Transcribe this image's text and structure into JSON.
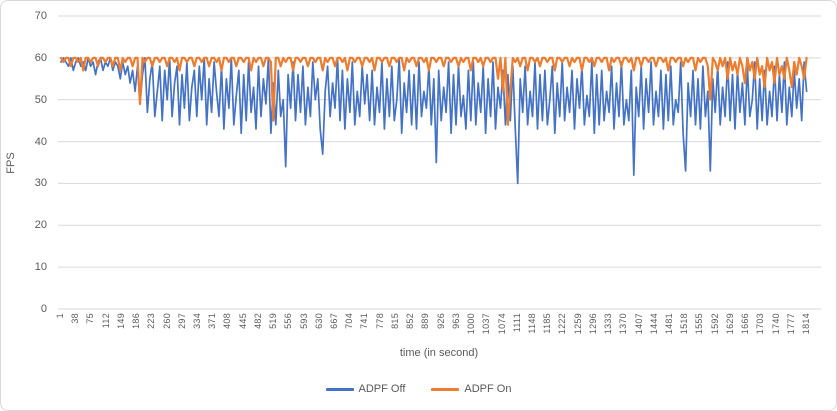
{
  "colors": {
    "adpf_off": "#4472C4",
    "adpf_on": "#ED7D31",
    "gridline": "#D9D9D9",
    "axis_text": "#595959",
    "figure_border": "#D9D9D9",
    "background": "#FFFFFF"
  },
  "chart_data": {
    "type": "line",
    "title": "",
    "xlabel": "time (in second)",
    "ylabel": "FPS",
    "ylim": [
      0,
      70
    ],
    "y_ticks": [
      0,
      10,
      20,
      30,
      40,
      50,
      60,
      70
    ],
    "x_range": [
      1,
      1814
    ],
    "x_tick_labels": [
      1,
      38,
      75,
      112,
      149,
      186,
      223,
      260,
      297,
      334,
      371,
      408,
      445,
      482,
      519,
      556,
      593,
      630,
      667,
      704,
      741,
      778,
      815,
      852,
      889,
      926,
      963,
      1000,
      1037,
      1074,
      1111,
      1148,
      1185,
      1222,
      1259,
      1296,
      1333,
      1370,
      1407,
      1444,
      1481,
      1518,
      1555,
      1592,
      1629,
      1666,
      1703,
      1740,
      1777,
      1814
    ],
    "grid": "horizontal",
    "legend_position": "bottom",
    "sampling": {
      "t_start": 1,
      "t_step": 6
    },
    "series": [
      {
        "name": "ADPF Off",
        "color": "#4472C4",
        "values": [
          59,
          60,
          59,
          58,
          60,
          57,
          59,
          60,
          58,
          59,
          57,
          60,
          58,
          59,
          56,
          59,
          60,
          57,
          59,
          58,
          60,
          57,
          59,
          58,
          55,
          59,
          56,
          58,
          54,
          57,
          52,
          58,
          49,
          56,
          60,
          47,
          55,
          59,
          46,
          52,
          58,
          45,
          57,
          50,
          60,
          46,
          54,
          58,
          44,
          56,
          48,
          59,
          45,
          53,
          57,
          46,
          58,
          50,
          60,
          44,
          55,
          47,
          59,
          52,
          46,
          58,
          43,
          55,
          48,
          60,
          44,
          51,
          57,
          42,
          56,
          45,
          59,
          47,
          53,
          43,
          58,
          46,
          55,
          49,
          60,
          42,
          54,
          44,
          57,
          46,
          50,
          34,
          56,
          48,
          59,
          45,
          56,
          47,
          58,
          44,
          53,
          46,
          59,
          50,
          55,
          43,
          37,
          52,
          58,
          46,
          54,
          48,
          60,
          45,
          57,
          43,
          55,
          47,
          59,
          44,
          52,
          46,
          58,
          49,
          56,
          45,
          57,
          44,
          53,
          47,
          59,
          43,
          55,
          46,
          58,
          45,
          50,
          60,
          42,
          54,
          47,
          57,
          44,
          56,
          43,
          59,
          46,
          52,
          48,
          58,
          44,
          55,
          35,
          57,
          45,
          53,
          47,
          59,
          42,
          56,
          44,
          58,
          46,
          51,
          43,
          57,
          45,
          59,
          44,
          54,
          47,
          58,
          42,
          55,
          46,
          59,
          43,
          53,
          48,
          57,
          44,
          56,
          45,
          58,
          43,
          30,
          55,
          47,
          58,
          44,
          52,
          46,
          59,
          43,
          56,
          45,
          57,
          44,
          50,
          58,
          42,
          54,
          46,
          59,
          45,
          53,
          47,
          57,
          43,
          55,
          48,
          58,
          44,
          51,
          46,
          59,
          42,
          56,
          44,
          57,
          45,
          52,
          47,
          58,
          43,
          54,
          46,
          59,
          44,
          50,
          45,
          57,
          32,
          53,
          46,
          58,
          43,
          55,
          47,
          59,
          44,
          52,
          46,
          57,
          43,
          56,
          45,
          58,
          44,
          50,
          47,
          59,
          42,
          33,
          54,
          46,
          57,
          44,
          55,
          43,
          58,
          46,
          52,
          33,
          55,
          47,
          58,
          44,
          53,
          46,
          59,
          45,
          56,
          43,
          57,
          47,
          54,
          44,
          58,
          46,
          50,
          59,
          43,
          55,
          45,
          57,
          44,
          52,
          46,
          58,
          45,
          56,
          47,
          59,
          44,
          53,
          46,
          57,
          48,
          55,
          45,
          59,
          52
        ]
      },
      {
        "name": "ADPF On",
        "color": "#ED7D31",
        "values": [
          60,
          59,
          60,
          60,
          58,
          60,
          60,
          59,
          60,
          57,
          60,
          60,
          59,
          60,
          60,
          58,
          60,
          60,
          59,
          60,
          60,
          58,
          60,
          60,
          57,
          60,
          59,
          60,
          60,
          58,
          60,
          60,
          49,
          60,
          59,
          60,
          60,
          58,
          60,
          60,
          59,
          60,
          60,
          58,
          60,
          60,
          59,
          60,
          57,
          60,
          60,
          59,
          60,
          60,
          58,
          60,
          60,
          59,
          60,
          60,
          58,
          60,
          60,
          59,
          60,
          57,
          60,
          60,
          59,
          60,
          60,
          58,
          60,
          60,
          59,
          60,
          60,
          57,
          60,
          59,
          60,
          60,
          58,
          60,
          60,
          59,
          45,
          60,
          60,
          58,
          60,
          59,
          60,
          60,
          57,
          60,
          60,
          59,
          60,
          60,
          58,
          60,
          60,
          59,
          60,
          60,
          57,
          60,
          59,
          60,
          60,
          58,
          60,
          60,
          59,
          60,
          57,
          60,
          60,
          59,
          60,
          60,
          58,
          60,
          60,
          59,
          60,
          57,
          60,
          60,
          59,
          60,
          60,
          58,
          60,
          60,
          59,
          60,
          60,
          57,
          60,
          59,
          60,
          60,
          58,
          60,
          60,
          59,
          60,
          57,
          60,
          60,
          59,
          60,
          60,
          58,
          60,
          60,
          59,
          60,
          60,
          58,
          60,
          59,
          60,
          60,
          57,
          60,
          60,
          59,
          60,
          58,
          60,
          60,
          59,
          60,
          60,
          55,
          60,
          52,
          60,
          44,
          52,
          60,
          59,
          60,
          58,
          60,
          60,
          57,
          60,
          60,
          59,
          60,
          58,
          60,
          60,
          59,
          60,
          60,
          57,
          60,
          60,
          59,
          60,
          60,
          58,
          60,
          59,
          60,
          60,
          57,
          60,
          60,
          59,
          60,
          58,
          60,
          60,
          59,
          60,
          60,
          57,
          60,
          59,
          60,
          60,
          58,
          60,
          60,
          59,
          60,
          57,
          60,
          60,
          58,
          60,
          60,
          59,
          60,
          60,
          58,
          60,
          60,
          59,
          60,
          57,
          60,
          60,
          59,
          60,
          60,
          58,
          60,
          59,
          60,
          60,
          57,
          60,
          59,
          60,
          60,
          58,
          50,
          60,
          59,
          57,
          60,
          58,
          60,
          55,
          60,
          57,
          59,
          56,
          60,
          58,
          54,
          60,
          57,
          59,
          55,
          60,
          56,
          58,
          53,
          60,
          57,
          59,
          54,
          60,
          56,
          58,
          55,
          60,
          57,
          53,
          59,
          56,
          60,
          58,
          55,
          60
        ]
      }
    ]
  }
}
